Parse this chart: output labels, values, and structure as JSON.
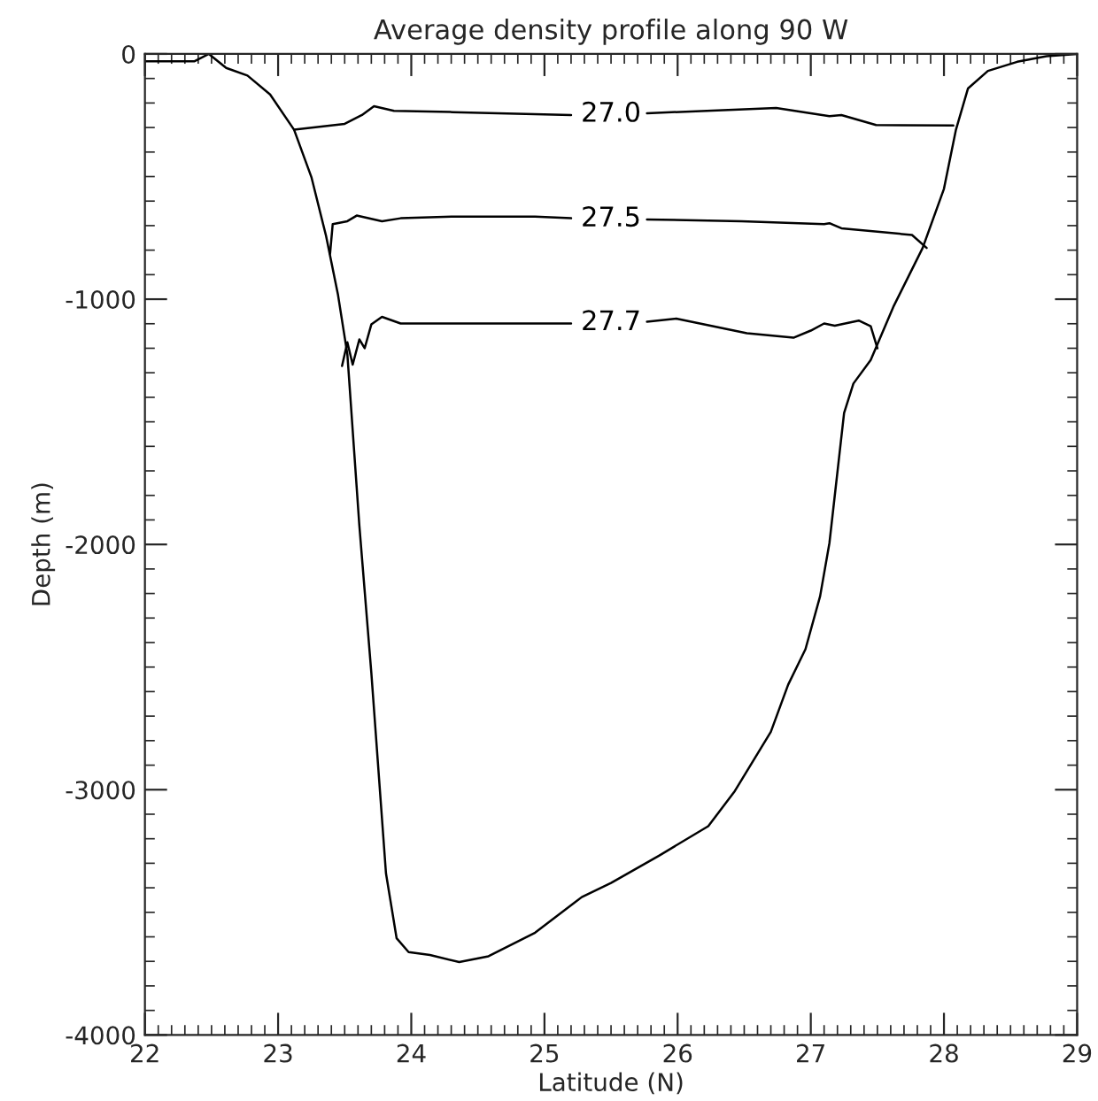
{
  "chart_data": {
    "type": "line",
    "title": "Average density profile along 90 W",
    "xlabel": "Latitude (N)",
    "ylabel": "Depth (m)",
    "xlim": [
      22,
      29
    ],
    "ylim": [
      -4000,
      0
    ],
    "xticks": [
      22,
      23,
      24,
      25,
      26,
      27,
      28,
      29,
      {
        "value": 22.1,
        "label": null
      },
      {
        "value": 22.2,
        "label": null
      },
      {
        "value": 22.3,
        "label": null
      },
      {
        "value": 22.4,
        "label": null
      },
      {
        "value": 22.5,
        "label": null
      },
      {
        "value": 22.6,
        "label": null
      },
      {
        "value": 22.7,
        "label": null
      },
      {
        "value": 22.8,
        "label": null
      },
      {
        "value": 22.9,
        "label": null
      },
      {
        "value": 23.1,
        "label": null
      },
      {
        "value": 23.2,
        "label": null
      },
      {
        "value": 23.3,
        "label": null
      },
      {
        "value": 23.4,
        "label": null
      },
      {
        "value": 23.5,
        "label": null
      },
      {
        "value": 23.6,
        "label": null
      },
      {
        "value": 23.7,
        "label": null
      },
      {
        "value": 23.8,
        "label": null
      },
      {
        "value": 23.9,
        "label": null
      },
      {
        "value": 24.1,
        "label": null
      },
      {
        "value": 24.2,
        "label": null
      },
      {
        "value": 24.3,
        "label": null
      },
      {
        "value": 24.4,
        "label": null
      },
      {
        "value": 24.5,
        "label": null
      },
      {
        "value": 24.6,
        "label": null
      },
      {
        "value": 24.7,
        "label": null
      },
      {
        "value": 24.8,
        "label": null
      },
      {
        "value": 24.9,
        "label": null
      },
      {
        "value": 25.1,
        "label": null
      },
      {
        "value": 25.2,
        "label": null
      },
      {
        "value": 25.3,
        "label": null
      },
      {
        "value": 25.4,
        "label": null
      },
      {
        "value": 25.5,
        "label": null
      },
      {
        "value": 25.6,
        "label": null
      },
      {
        "value": 25.7,
        "label": null
      },
      {
        "value": 25.8,
        "label": null
      },
      {
        "value": 25.9,
        "label": null
      },
      {
        "value": 26.1,
        "label": null
      },
      {
        "value": 26.2,
        "label": null
      },
      {
        "value": 26.3,
        "label": null
      },
      {
        "value": 26.4,
        "label": null
      },
      {
        "value": 26.5,
        "label": null
      },
      {
        "value": 26.6,
        "label": null
      },
      {
        "value": 26.7,
        "label": null
      },
      {
        "value": 26.8,
        "label": null
      },
      {
        "value": 26.9,
        "label": null
      },
      {
        "value": 27.1,
        "label": null
      },
      {
        "value": 27.2,
        "label": null
      },
      {
        "value": 27.3,
        "label": null
      },
      {
        "value": 27.4,
        "label": null
      },
      {
        "value": 27.5,
        "label": null
      },
      {
        "value": 27.6,
        "label": null
      },
      {
        "value": 27.7,
        "label": null
      },
      {
        "value": 27.8,
        "label": null
      },
      {
        "value": 27.9,
        "label": null
      },
      {
        "value": 28.1,
        "label": null
      },
      {
        "value": 28.2,
        "label": null
      },
      {
        "value": 28.3,
        "label": null
      },
      {
        "value": 28.4,
        "label": null
      },
      {
        "value": 28.5,
        "label": null
      },
      {
        "value": 28.6,
        "label": null
      },
      {
        "value": 28.7,
        "label": null
      },
      {
        "value": 28.8,
        "label": null
      },
      {
        "value": 28.9,
        "label": null
      }
    ],
    "yticks": [
      -4000,
      -3000,
      -2000,
      -1000,
      0,
      {
        "value": -100,
        "label": null
      },
      {
        "value": -200,
        "label": null
      },
      {
        "value": -300,
        "label": null
      },
      {
        "value": -400,
        "label": null
      },
      {
        "value": -500,
        "label": null
      },
      {
        "value": -600,
        "label": null
      },
      {
        "value": -700,
        "label": null
      },
      {
        "value": -800,
        "label": null
      },
      {
        "value": -900,
        "label": null
      },
      {
        "value": -1100,
        "label": null
      },
      {
        "value": -1200,
        "label": null
      },
      {
        "value": -1300,
        "label": null
      },
      {
        "value": -1400,
        "label": null
      },
      {
        "value": -1500,
        "label": null
      },
      {
        "value": -1600,
        "label": null
      },
      {
        "value": -1700,
        "label": null
      },
      {
        "value": -1800,
        "label": null
      },
      {
        "value": -1900,
        "label": null
      },
      {
        "value": -2100,
        "label": null
      },
      {
        "value": -2200,
        "label": null
      },
      {
        "value": -2300,
        "label": null
      },
      {
        "value": -2400,
        "label": null
      },
      {
        "value": -2500,
        "label": null
      },
      {
        "value": -2600,
        "label": null
      },
      {
        "value": -2700,
        "label": null
      },
      {
        "value": -2800,
        "label": null
      },
      {
        "value": -2900,
        "label": null
      },
      {
        "value": -3100,
        "label": null
      },
      {
        "value": -3200,
        "label": null
      },
      {
        "value": -3300,
        "label": null
      },
      {
        "value": -3400,
        "label": null
      },
      {
        "value": -3500,
        "label": null
      },
      {
        "value": -3600,
        "label": null
      },
      {
        "value": -3700,
        "label": null
      },
      {
        "value": -3800,
        "label": null
      },
      {
        "value": -3900,
        "label": null
      }
    ],
    "grid": false,
    "line_style": "solid",
    "marker": "none",
    "series": [
      {
        "color": "#000000",
        "x": [
          22.0,
          22.37,
          22.48,
          22.61,
          22.77,
          22.94,
          23.12,
          23.25,
          23.36,
          23.45,
          23.52,
          23.61,
          23.7,
          23.81,
          23.89,
          23.98,
          24.14,
          24.36,
          24.58,
          24.93,
          25.28,
          25.5,
          25.86,
          26.23,
          26.43,
          26.7,
          26.83,
          26.96,
          27.07,
          27.14,
          27.25,
          27.32,
          27.45,
          27.62,
          27.84,
          28.0,
          28.09,
          28.18,
          28.33,
          28.55,
          28.77,
          29.0
        ],
        "values": [
          -30,
          -30,
          0,
          -57,
          -88,
          -165,
          -309,
          -502,
          -742,
          -983,
          -1224,
          -1922,
          -2523,
          -3341,
          -3606,
          -3662,
          -3674,
          -3703,
          -3679,
          -3583,
          -3438,
          -3380,
          -3269,
          -3149,
          -3005,
          -2764,
          -2572,
          -2427,
          -2211,
          -1994,
          -1464,
          -1344,
          -1248,
          -1031,
          -791,
          -550,
          -309,
          -141,
          -69,
          -32,
          -9,
          0
        ]
      },
      {
        "name": "27.0",
        "color": "#000000",
        "x": [
          23.12,
          23.5,
          23.63,
          23.72,
          23.87,
          24.31,
          25.2,
          25.5,
          25.77,
          26.74,
          27.14,
          27.23,
          27.49,
          28.07
        ],
        "values": [
          -309,
          -285,
          -249,
          -213,
          -232,
          -237,
          -249,
          null,
          -242,
          -220,
          -254,
          -249,
          -290,
          -292
        ]
      },
      {
        "name": "27.5",
        "color": "#000000",
        "x": [
          23.39,
          23.41,
          23.52,
          23.59,
          23.78,
          23.92,
          24.31,
          24.93,
          25.2,
          25.5,
          25.77,
          26.48,
          27.1,
          27.14,
          27.23,
          27.76,
          27.87
        ],
        "values": [
          -815,
          -694,
          -682,
          -659,
          -682,
          -670,
          -663,
          -663,
          -670,
          null,
          -675,
          -682,
          -694,
          -690,
          -711,
          -738,
          -791
        ]
      },
      {
        "name": "27.7",
        "color": "#000000",
        "x": [
          23.48,
          23.52,
          23.56,
          23.61,
          23.65,
          23.7,
          23.78,
          23.92,
          25.2,
          25.5,
          25.77,
          25.99,
          26.52,
          26.87,
          27.0,
          27.1,
          27.18,
          27.36,
          27.45,
          27.5
        ],
        "values": [
          -1272,
          -1176,
          -1267,
          -1164,
          -1200,
          -1103,
          -1072,
          -1099,
          -1099,
          null,
          -1092,
          -1079,
          -1139,
          -1157,
          -1128,
          -1099,
          -1108,
          -1087,
          -1110,
          -1200
        ]
      }
    ]
  }
}
